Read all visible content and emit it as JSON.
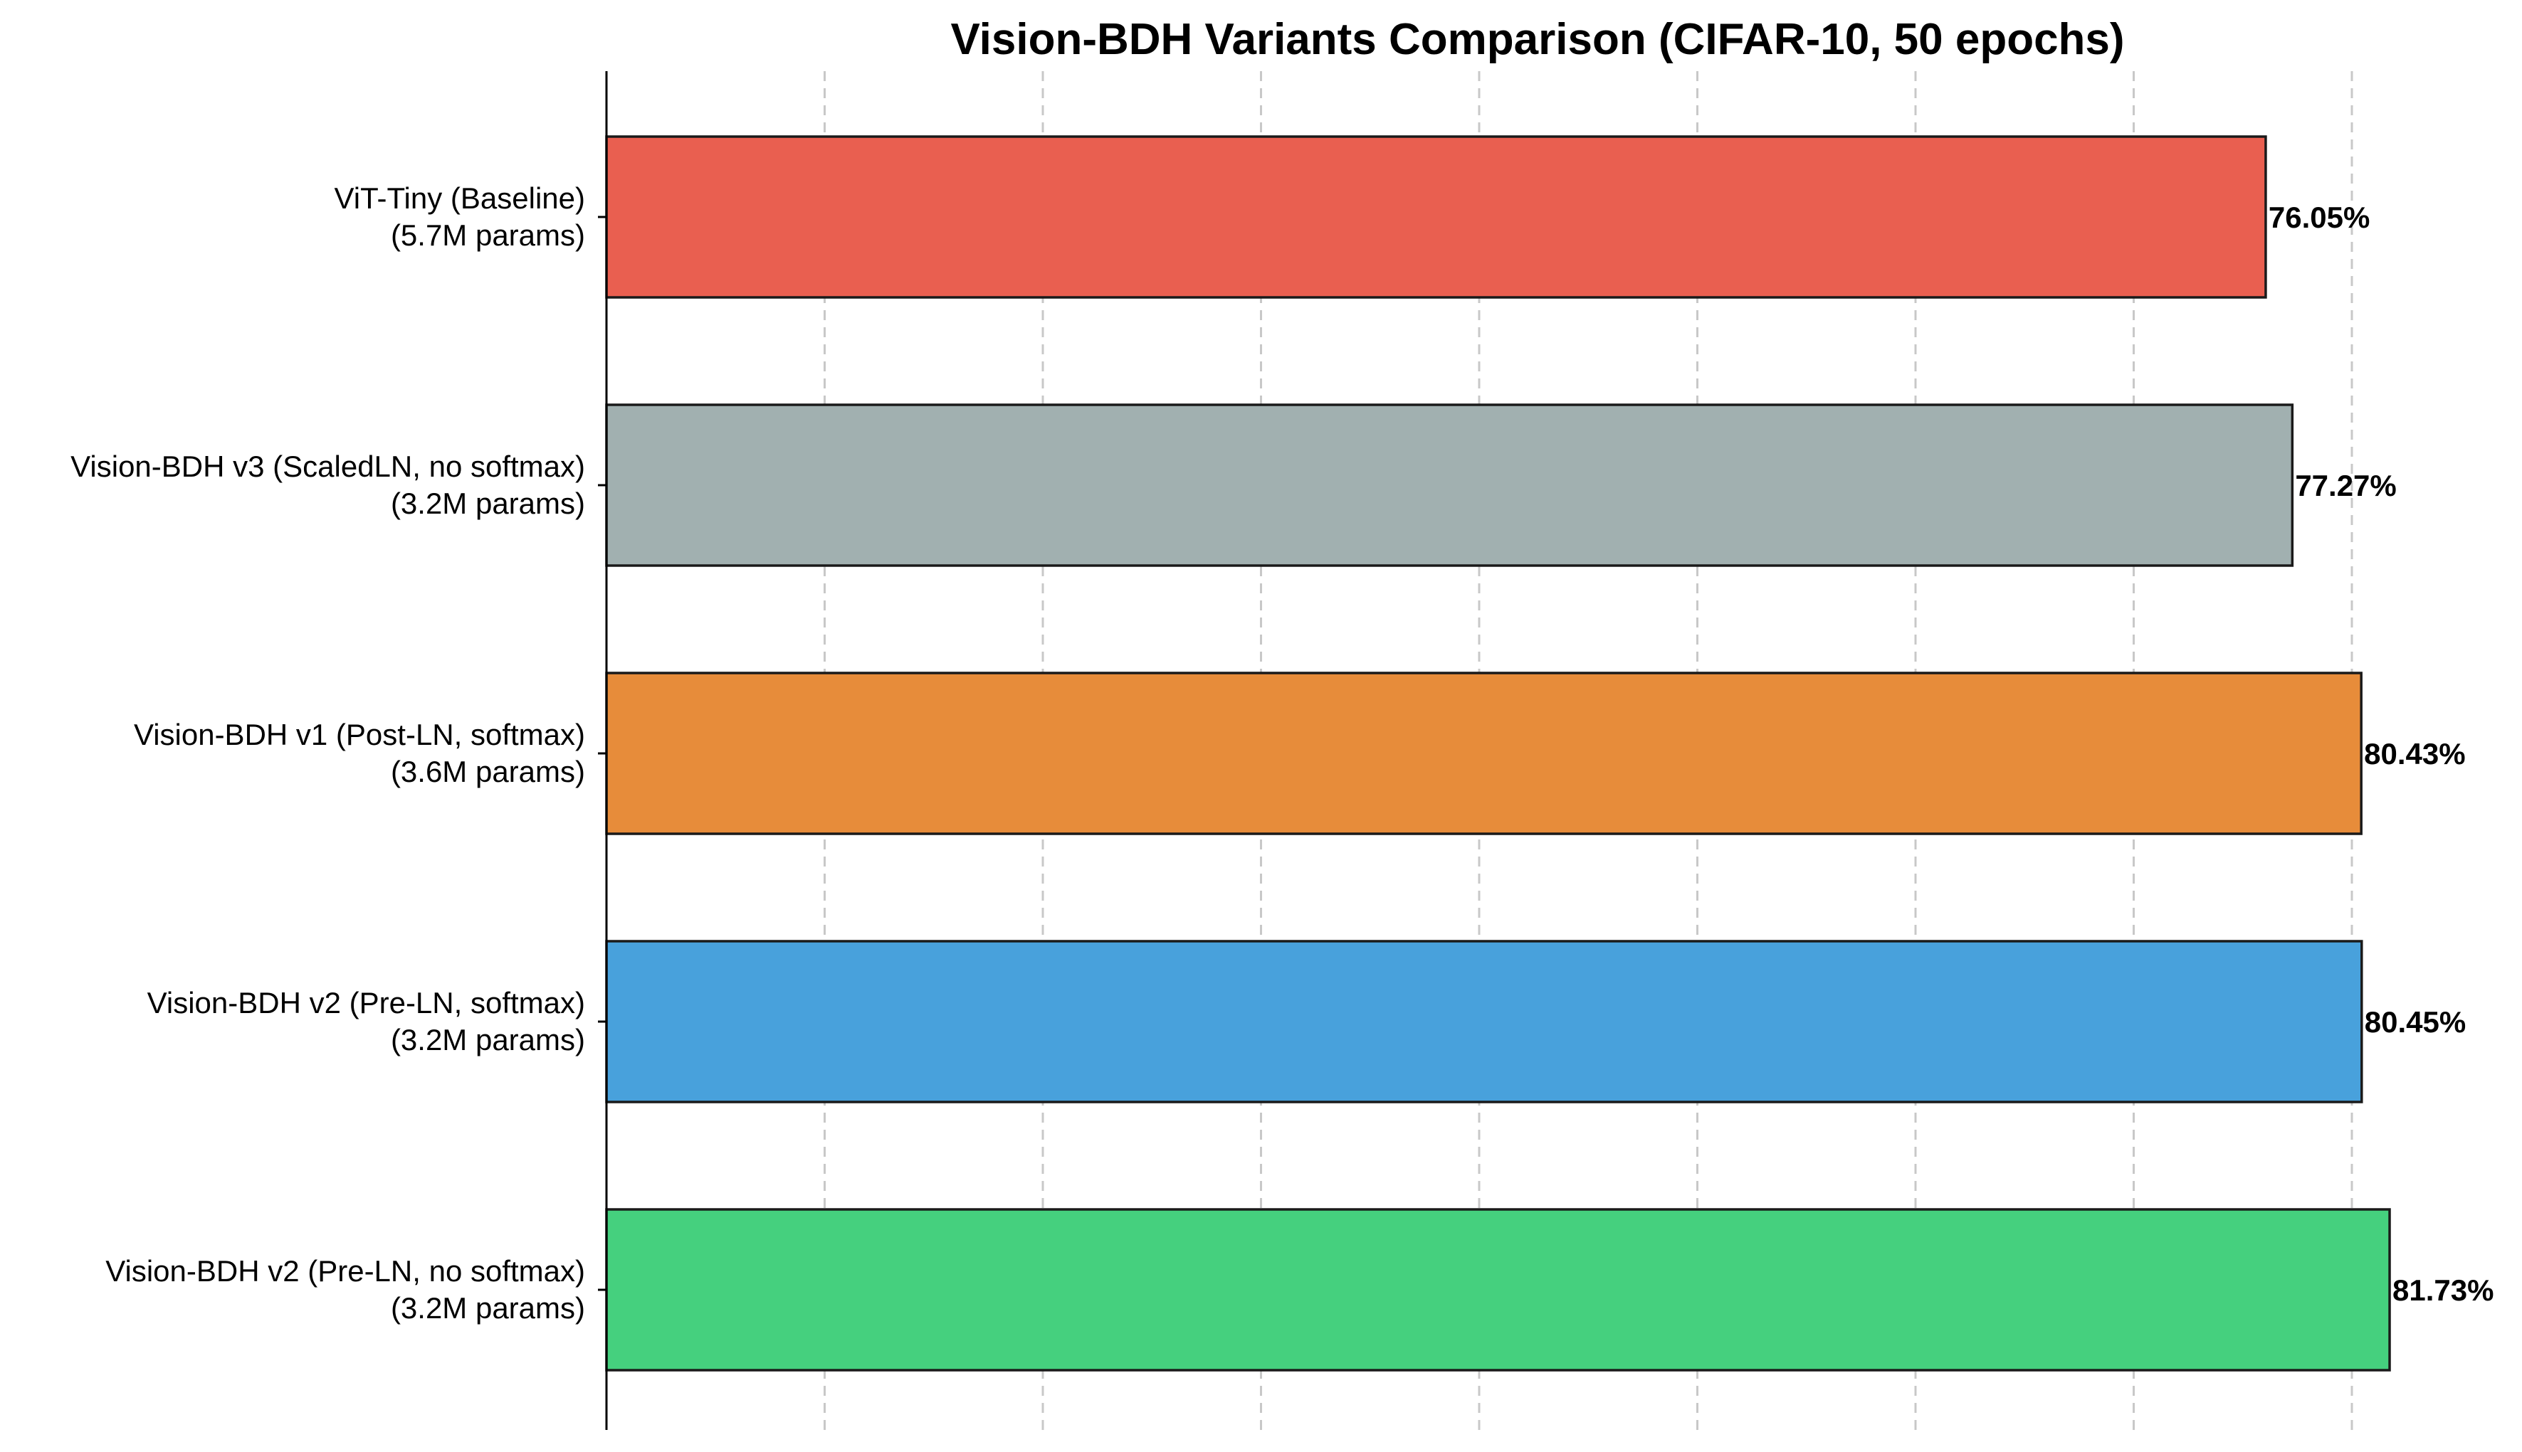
{
  "chart_data": {
    "type": "bar",
    "orientation": "horizontal",
    "title": "Vision-BDH Variants Comparison (CIFAR-10, 50 epochs)",
    "xlabel": "",
    "ylabel": "",
    "xlim": [
      0,
      85
    ],
    "grid": "x dashed",
    "x_ticks": [
      0,
      10,
      20,
      30,
      40,
      50,
      60,
      70,
      80
    ],
    "categories": [
      [
        "ViT-Tiny (Baseline)",
        "(5.7M params)"
      ],
      [
        "Vision-BDH v3 (ScaledLN, no softmax)",
        "(3.2M params)"
      ],
      [
        "Vision-BDH v1 (Post-LN, softmax)",
        "(3.6M params)"
      ],
      [
        "Vision-BDH v2 (Pre-LN, softmax)",
        "(3.2M params)"
      ],
      [
        "Vision-BDH v2 (Pre-LN, no softmax)",
        "(3.2M params)"
      ]
    ],
    "values": [
      76.05,
      77.27,
      80.43,
      80.45,
      81.73
    ],
    "value_labels": [
      "76.05%",
      "77.27%",
      "80.43%",
      "80.45%",
      "81.73%"
    ],
    "colors": [
      "#e95f50",
      "#a1b0b0",
      "#e78c3a",
      "#48a1dc",
      "#45d07e"
    ]
  }
}
